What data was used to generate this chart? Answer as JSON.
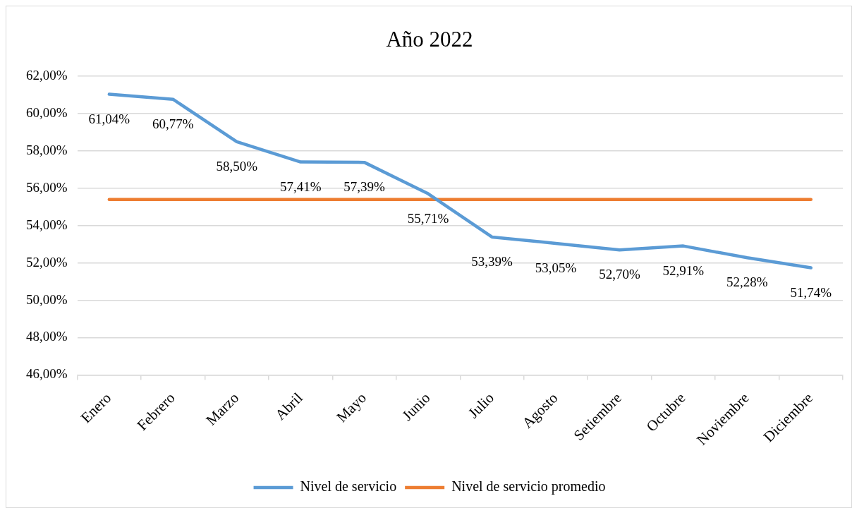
{
  "chart_data": {
    "type": "line",
    "title": "Año 2022",
    "categories": [
      "Enero",
      "Febrero",
      "Marzo",
      "Abril",
      "Mayo",
      "Junio",
      "Julio",
      "Agosto",
      "Setiembre",
      "Octubre",
      "Noviembre",
      "Diciembre"
    ],
    "series": [
      {
        "name": "Nivel de servicio",
        "color": "#5b9bd5",
        "values": [
          61.04,
          60.77,
          58.5,
          57.41,
          57.39,
          55.71,
          53.39,
          53.05,
          52.7,
          52.91,
          52.28,
          51.74
        ],
        "value_labels": [
          "61,04%",
          "60,77%",
          "58,50%",
          "57,41%",
          "57,39%",
          "55,71%",
          "53,39%",
          "53,05%",
          "52,70%",
          "52,91%",
          "52,28%",
          "51,74%"
        ]
      },
      {
        "name": "Nivel de servicio promedio",
        "color": "#ed7d31",
        "values": [
          55.4,
          55.4,
          55.4,
          55.4,
          55.4,
          55.4,
          55.4,
          55.4,
          55.4,
          55.4,
          55.4,
          55.4
        ]
      }
    ],
    "ylim": [
      46,
      62
    ],
    "yticks": [
      {
        "value": 46,
        "label": "46,00%"
      },
      {
        "value": 48,
        "label": "48,00%"
      },
      {
        "value": 50,
        "label": "50,00%"
      },
      {
        "value": 52,
        "label": "52,00%"
      },
      {
        "value": 54,
        "label": "54,00%"
      },
      {
        "value": 56,
        "label": "56,00%"
      },
      {
        "value": 58,
        "label": "58,00%"
      },
      {
        "value": 60,
        "label": "60,00%"
      },
      {
        "value": 62,
        "label": "62,00%"
      }
    ],
    "grid": "y",
    "legend": "bottom",
    "marker": "none",
    "line_style": "solid"
  }
}
